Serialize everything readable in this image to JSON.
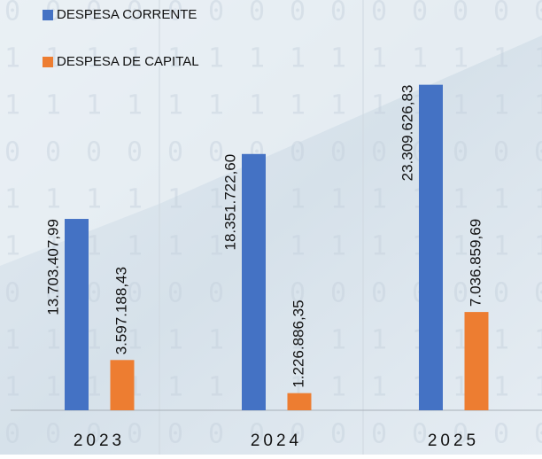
{
  "chart_data": {
    "type": "bar",
    "categories": [
      "2023",
      "2024",
      "2025"
    ],
    "series": [
      {
        "name": "DESPESA CORRENTE",
        "color": "#4472c4",
        "values": [
          13703407.99,
          18351722.6,
          23309626.83
        ],
        "value_labels": [
          "13.703.407,99",
          "18.351.722,60",
          "23.309.626,83"
        ]
      },
      {
        "name": "DESPESA DE CAPITAL",
        "color": "#ed7d31",
        "values": [
          3597188.43,
          1226886.35,
          7036859.69
        ],
        "value_labels": [
          "3.597.188,43",
          "1.226.886,35",
          "7.036.859,69"
        ]
      }
    ],
    "ylim": [
      0,
      25000000
    ]
  }
}
